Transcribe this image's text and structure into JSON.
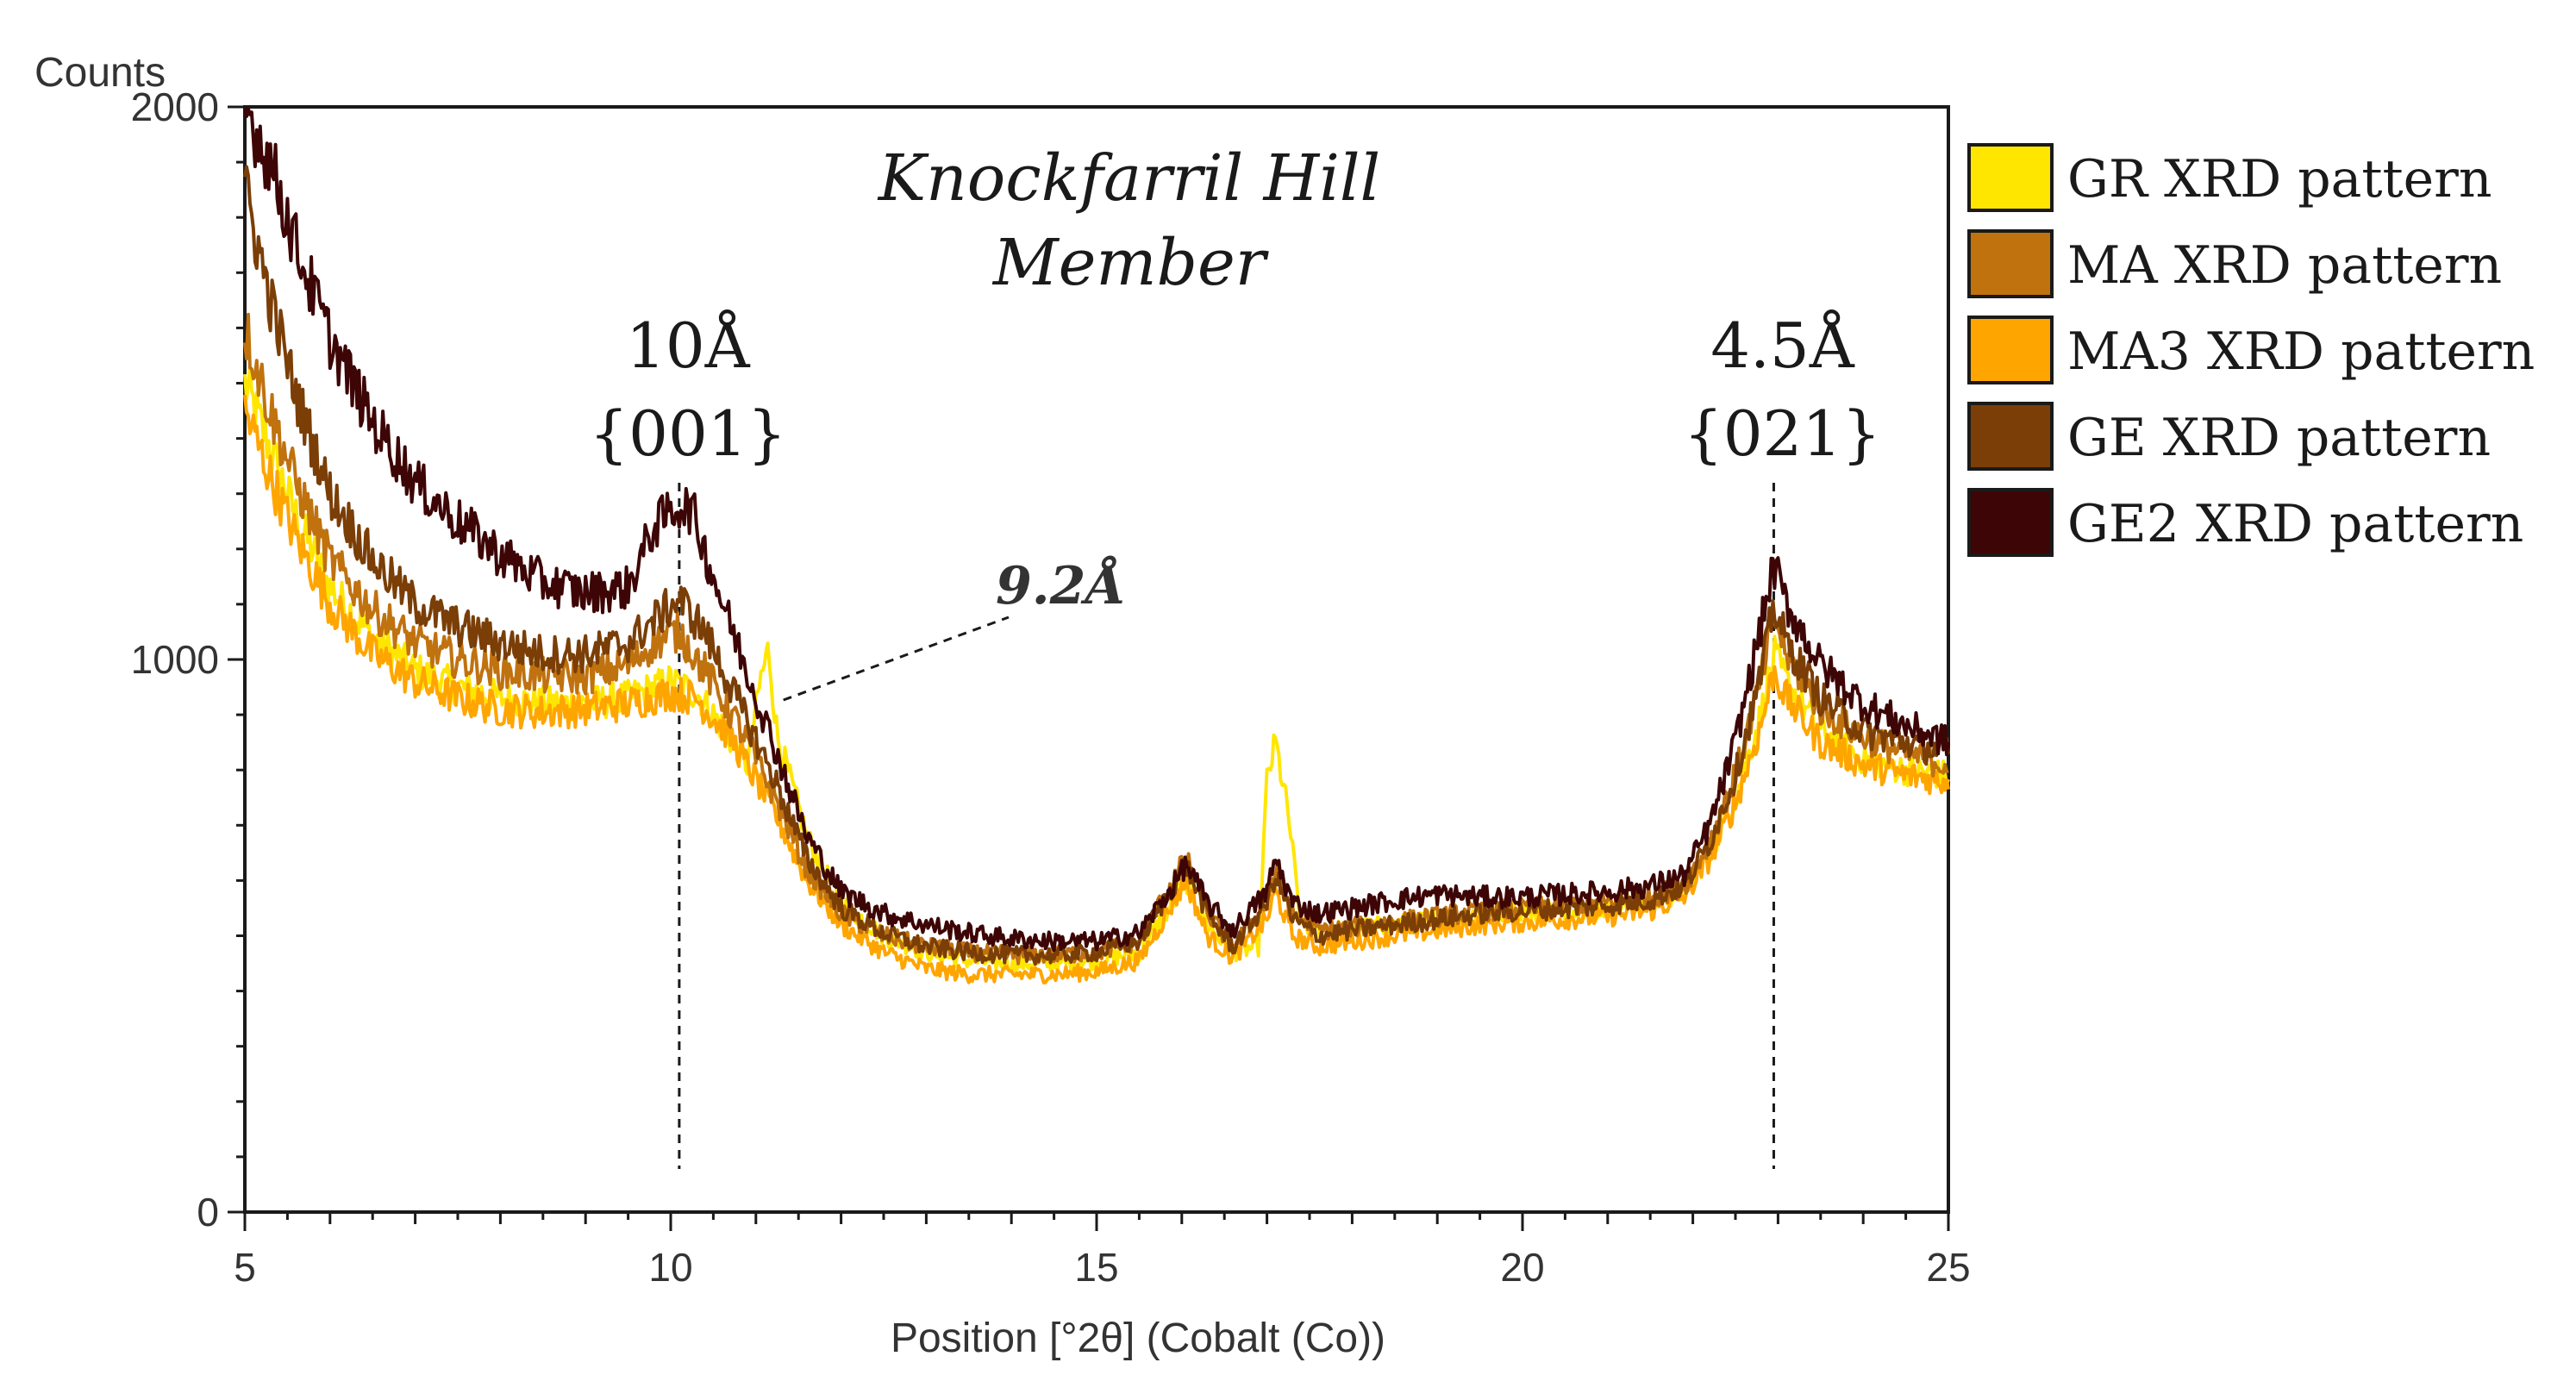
{
  "chart_data": {
    "type": "line",
    "title": "Knockfarril Hill Member",
    "title_lines": [
      "Knockfarril Hill",
      "Member"
    ],
    "xlabel": "Position [°2θ] (Cobalt (Co))",
    "ylabel": "Counts",
    "xlim": [
      5,
      25
    ],
    "ylim": [
      0,
      2000
    ],
    "x_ticks": [
      5,
      10,
      15,
      20,
      25
    ],
    "y_ticks": [
      0,
      1000,
      2000
    ],
    "grid": false,
    "legend_position": "right",
    "series": [
      {
        "name": "GR XRD pattern",
        "color": "#ffe600",
        "points": [
          [
            5,
            1500
          ],
          [
            5.3,
            1380
          ],
          [
            5.6,
            1260
          ],
          [
            6,
            1130
          ],
          [
            6.5,
            1040
          ],
          [
            7,
            980
          ],
          [
            7.5,
            950
          ],
          [
            8,
            930
          ],
          [
            8.5,
            920
          ],
          [
            9,
            920
          ],
          [
            9.5,
            930
          ],
          [
            10,
            960
          ],
          [
            10.3,
            940
          ],
          [
            10.6,
            880
          ],
          [
            10.9,
            810
          ],
          [
            11.05,
            960
          ],
          [
            11.15,
            1020
          ],
          [
            11.25,
            860
          ],
          [
            11.6,
            680
          ],
          [
            12,
            560
          ],
          [
            12.5,
            500
          ],
          [
            13,
            470
          ],
          [
            13.5,
            455
          ],
          [
            14,
            450
          ],
          [
            14.5,
            450
          ],
          [
            15,
            455
          ],
          [
            15.5,
            470
          ],
          [
            15.9,
            560
          ],
          [
            16.05,
            600
          ],
          [
            16.3,
            520
          ],
          [
            16.6,
            470
          ],
          [
            16.9,
            480
          ],
          [
            17.0,
            780
          ],
          [
            17.1,
            850
          ],
          [
            17.25,
            720
          ],
          [
            17.4,
            520
          ],
          [
            17.8,
            510
          ],
          [
            18.5,
            520
          ],
          [
            19,
            530
          ],
          [
            19.5,
            540
          ],
          [
            20,
            545
          ],
          [
            20.5,
            545
          ],
          [
            21,
            550
          ],
          [
            21.5,
            560
          ],
          [
            21.9,
            580
          ],
          [
            22.2,
            650
          ],
          [
            22.5,
            750
          ],
          [
            22.8,
            900
          ],
          [
            22.95,
            1010
          ],
          [
            23.1,
            960
          ],
          [
            23.5,
            870
          ],
          [
            24,
            820
          ],
          [
            24.5,
            800
          ],
          [
            25,
            790
          ]
        ]
      },
      {
        "name": "MA XRD pattern",
        "color": "#c0720f",
        "points": [
          [
            5,
            1600
          ],
          [
            5.3,
            1450
          ],
          [
            5.6,
            1320
          ],
          [
            6,
            1180
          ],
          [
            6.5,
            1090
          ],
          [
            7,
            1030
          ],
          [
            7.5,
            1000
          ],
          [
            8,
            980
          ],
          [
            8.5,
            970
          ],
          [
            9,
            970
          ],
          [
            9.5,
            990
          ],
          [
            9.8,
            1030
          ],
          [
            10.1,
            1050
          ],
          [
            10.4,
            980
          ],
          [
            10.8,
            880
          ],
          [
            11.2,
            760
          ],
          [
            11.6,
            620
          ],
          [
            12,
            540
          ],
          [
            12.5,
            500
          ],
          [
            13,
            480
          ],
          [
            13.5,
            470
          ],
          [
            14,
            465
          ],
          [
            14.5,
            465
          ],
          [
            15,
            470
          ],
          [
            15.5,
            490
          ],
          [
            15.9,
            600
          ],
          [
            16.05,
            640
          ],
          [
            16.3,
            540
          ],
          [
            16.6,
            480
          ],
          [
            17.0,
            560
          ],
          [
            17.1,
            620
          ],
          [
            17.3,
            540
          ],
          [
            17.6,
            510
          ],
          [
            18,
            515
          ],
          [
            18.5,
            525
          ],
          [
            19,
            535
          ],
          [
            19.5,
            545
          ],
          [
            20,
            550
          ],
          [
            20.5,
            555
          ],
          [
            21,
            560
          ],
          [
            21.5,
            570
          ],
          [
            21.9,
            590
          ],
          [
            22.2,
            670
          ],
          [
            22.5,
            790
          ],
          [
            22.8,
            960
          ],
          [
            22.95,
            1080
          ],
          [
            23.1,
            1010
          ],
          [
            23.5,
            910
          ],
          [
            24,
            860
          ],
          [
            24.5,
            830
          ],
          [
            25,
            810
          ]
        ]
      },
      {
        "name": "MA3 XRD pattern",
        "color": "#ffa500",
        "points": [
          [
            5,
            1450
          ],
          [
            5.3,
            1330
          ],
          [
            5.6,
            1220
          ],
          [
            6,
            1100
          ],
          [
            6.5,
            1010
          ],
          [
            7,
            960
          ],
          [
            7.5,
            930
          ],
          [
            8,
            910
          ],
          [
            8.5,
            905
          ],
          [
            9,
            910
          ],
          [
            9.5,
            920
          ],
          [
            10,
            940
          ],
          [
            10.3,
            930
          ],
          [
            10.7,
            860
          ],
          [
            11.2,
            730
          ],
          [
            11.6,
            600
          ],
          [
            12,
            520
          ],
          [
            12.5,
            470
          ],
          [
            13,
            440
          ],
          [
            13.5,
            430
          ],
          [
            14,
            430
          ],
          [
            14.5,
            430
          ],
          [
            15,
            435
          ],
          [
            15.5,
            455
          ],
          [
            15.9,
            560
          ],
          [
            16.05,
            600
          ],
          [
            16.3,
            500
          ],
          [
            16.6,
            460
          ],
          [
            17.0,
            530
          ],
          [
            17.1,
            580
          ],
          [
            17.3,
            500
          ],
          [
            17.6,
            480
          ],
          [
            18,
            490
          ],
          [
            18.5,
            500
          ],
          [
            19,
            510
          ],
          [
            19.5,
            520
          ],
          [
            20,
            525
          ],
          [
            20.5,
            530
          ],
          [
            21,
            535
          ],
          [
            21.5,
            545
          ],
          [
            21.9,
            570
          ],
          [
            22.2,
            640
          ],
          [
            22.5,
            740
          ],
          [
            22.8,
            880
          ],
          [
            22.95,
            980
          ],
          [
            23.1,
            930
          ],
          [
            23.5,
            850
          ],
          [
            24,
            810
          ],
          [
            24.5,
            790
          ],
          [
            25,
            780
          ]
        ]
      },
      {
        "name": "GE XRD pattern",
        "color": "#7a3e06",
        "points": [
          [
            5,
            1850
          ],
          [
            5.3,
            1650
          ],
          [
            5.6,
            1480
          ],
          [
            6,
            1300
          ],
          [
            6.5,
            1180
          ],
          [
            7,
            1100
          ],
          [
            7.5,
            1060
          ],
          [
            8,
            1030
          ],
          [
            8.5,
            1010
          ],
          [
            9,
            1010
          ],
          [
            9.5,
            1030
          ],
          [
            9.8,
            1070
          ],
          [
            10.1,
            1110
          ],
          [
            10.4,
            1050
          ],
          [
            10.8,
            920
          ],
          [
            11.2,
            790
          ],
          [
            11.6,
            640
          ],
          [
            12,
            550
          ],
          [
            12.5,
            505
          ],
          [
            13,
            480
          ],
          [
            13.5,
            470
          ],
          [
            14,
            465
          ],
          [
            14.5,
            465
          ],
          [
            15,
            470
          ],
          [
            15.5,
            490
          ],
          [
            15.9,
            590
          ],
          [
            16.05,
            630
          ],
          [
            16.3,
            540
          ],
          [
            16.6,
            480
          ],
          [
            17.0,
            560
          ],
          [
            17.1,
            610
          ],
          [
            17.3,
            530
          ],
          [
            17.6,
            500
          ],
          [
            18,
            510
          ],
          [
            18.5,
            520
          ],
          [
            19,
            530
          ],
          [
            19.5,
            540
          ],
          [
            20,
            545
          ],
          [
            20.5,
            550
          ],
          [
            21,
            555
          ],
          [
            21.5,
            565
          ],
          [
            21.9,
            590
          ],
          [
            22.2,
            670
          ],
          [
            22.5,
            790
          ],
          [
            22.8,
            970
          ],
          [
            22.95,
            1100
          ],
          [
            23.1,
            1030
          ],
          [
            23.5,
            930
          ],
          [
            24,
            870
          ],
          [
            24.5,
            850
          ],
          [
            25,
            830
          ]
        ]
      },
      {
        "name": "GE2 XRD pattern",
        "color": "#3d0505",
        "points": [
          [
            5,
            2000
          ],
          [
            5.3,
            1900
          ],
          [
            5.6,
            1750
          ],
          [
            6,
            1580
          ],
          [
            6.5,
            1430
          ],
          [
            7,
            1320
          ],
          [
            7.5,
            1250
          ],
          [
            8,
            1190
          ],
          [
            8.5,
            1140
          ],
          [
            9,
            1120
          ],
          [
            9.5,
            1130
          ],
          [
            9.8,
            1240
          ],
          [
            10.1,
            1280
          ],
          [
            10.25,
            1270
          ],
          [
            10.5,
            1150
          ],
          [
            10.8,
            1020
          ],
          [
            11.2,
            850
          ],
          [
            11.6,
            680
          ],
          [
            12,
            580
          ],
          [
            12.5,
            540
          ],
          [
            13,
            520
          ],
          [
            13.5,
            505
          ],
          [
            14,
            495
          ],
          [
            14.5,
            490
          ],
          [
            15,
            490
          ],
          [
            15.5,
            505
          ],
          [
            15.9,
            590
          ],
          [
            16.05,
            630
          ],
          [
            16.3,
            560
          ],
          [
            16.6,
            510
          ],
          [
            17.0,
            580
          ],
          [
            17.1,
            640
          ],
          [
            17.3,
            560
          ],
          [
            17.6,
            540
          ],
          [
            18,
            550
          ],
          [
            18.5,
            565
          ],
          [
            19,
            575
          ],
          [
            19.5,
            570
          ],
          [
            20,
            570
          ],
          [
            20.5,
            575
          ],
          [
            21,
            580
          ],
          [
            21.5,
            590
          ],
          [
            21.9,
            610
          ],
          [
            22.2,
            700
          ],
          [
            22.5,
            850
          ],
          [
            22.8,
            1060
          ],
          [
            22.95,
            1170
          ],
          [
            23.1,
            1100
          ],
          [
            23.5,
            990
          ],
          [
            24,
            920
          ],
          [
            24.5,
            880
          ],
          [
            25,
            850
          ]
        ]
      }
    ],
    "annotations": [
      {
        "kind": "vline",
        "x": 10.1,
        "label_top": "10Å",
        "label_bottom": "{001}"
      },
      {
        "kind": "vline",
        "x": 22.95,
        "label_top": "4.5Å",
        "label_bottom": "{021}"
      },
      {
        "kind": "callout",
        "x": 11.1,
        "label": "9.2Å"
      }
    ]
  }
}
